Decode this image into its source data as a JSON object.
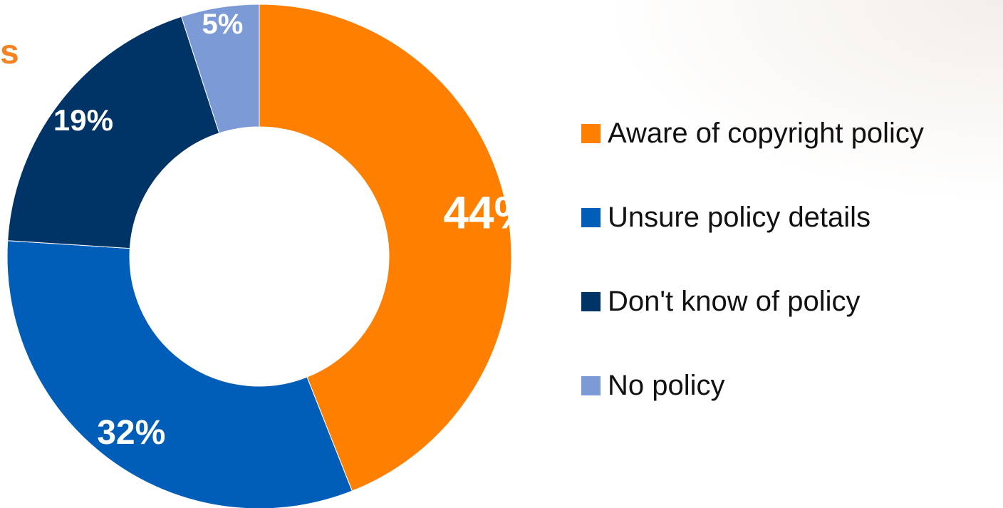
{
  "title_fragment": "s",
  "colors": {
    "accent": "#f58220"
  },
  "chart_data": {
    "type": "pie",
    "style": "donut",
    "categories": [
      "Aware of copyright policy",
      "Unsure policy details",
      "Don't know of policy",
      "No policy"
    ],
    "values": [
      44,
      32,
      19,
      5
    ],
    "data_labels": [
      "44%",
      "32%",
      "19%",
      "5%"
    ],
    "colors": [
      "#ff8000",
      "#005eb8",
      "#003366",
      "#7b9ad6"
    ],
    "legend_position": "right",
    "start_angle": "12 o'clock",
    "direction": "clockwise"
  }
}
